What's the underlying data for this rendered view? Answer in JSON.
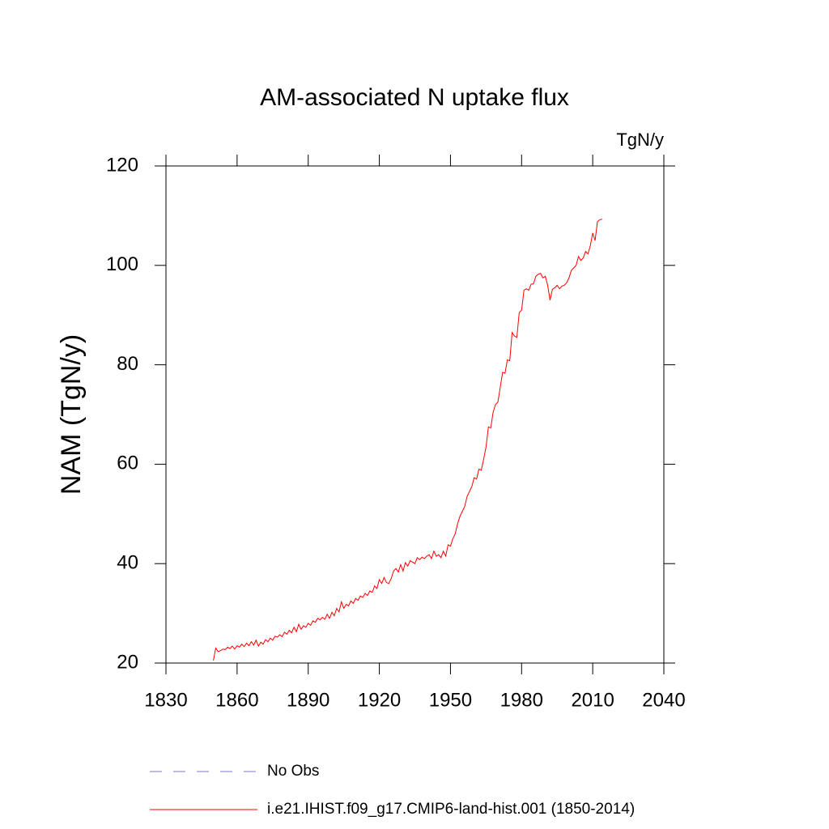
{
  "chart_data": {
    "type": "line",
    "title": "AM-associated N uptake flux",
    "units": "TgN/y",
    "ylabel": "NAM  (TgN/y)",
    "xlim": [
      1830,
      2040
    ],
    "xticks": [
      1830,
      1860,
      1890,
      1920,
      1950,
      1980,
      2010,
      2040
    ],
    "ylim": [
      20,
      120
    ],
    "yticks": [
      20,
      40,
      60,
      80,
      100,
      120
    ],
    "obs": {
      "name": "No Obs",
      "color": "#7b7bc4",
      "dashed": true
    },
    "x": [
      1850,
      1851,
      1852,
      1853,
      1854,
      1855,
      1856,
      1857,
      1858,
      1859,
      1860,
      1861,
      1862,
      1863,
      1864,
      1865,
      1866,
      1867,
      1868,
      1869,
      1870,
      1871,
      1872,
      1873,
      1874,
      1875,
      1876,
      1877,
      1878,
      1879,
      1880,
      1881,
      1882,
      1883,
      1884,
      1885,
      1886,
      1887,
      1888,
      1889,
      1890,
      1891,
      1892,
      1893,
      1894,
      1895,
      1896,
      1897,
      1898,
      1899,
      1900,
      1901,
      1902,
      1903,
      1904,
      1905,
      1906,
      1907,
      1908,
      1909,
      1910,
      1911,
      1912,
      1913,
      1914,
      1915,
      1916,
      1917,
      1918,
      1919,
      1920,
      1921,
      1922,
      1923,
      1924,
      1925,
      1926,
      1927,
      1928,
      1929,
      1930,
      1931,
      1932,
      1933,
      1934,
      1935,
      1936,
      1937,
      1938,
      1939,
      1940,
      1941,
      1942,
      1943,
      1944,
      1945,
      1946,
      1947,
      1948,
      1949,
      1950,
      1951,
      1952,
      1953,
      1954,
      1955,
      1956,
      1957,
      1958,
      1959,
      1960,
      1961,
      1962,
      1963,
      1964,
      1965,
      1966,
      1967,
      1968,
      1969,
      1970,
      1971,
      1972,
      1973,
      1974,
      1975,
      1976,
      1977,
      1978,
      1979,
      1980,
      1981,
      1982,
      1983,
      1984,
      1985,
      1986,
      1987,
      1988,
      1989,
      1990,
      1991,
      1992,
      1993,
      1994,
      1995,
      1996,
      1997,
      1998,
      1999,
      2000,
      2001,
      2002,
      2003,
      2004,
      2005,
      2006,
      2007,
      2008,
      2009,
      2010,
      2011,
      2012,
      2013,
      2014
    ],
    "series": [
      {
        "name": "i.e21.IHIST.f09_g17.CMIP6-land-hist.001 (1850-2014)",
        "color": "#ff0000",
        "values": [
          20.5,
          23.0,
          22.3,
          22.5,
          22.8,
          22.7,
          23.2,
          22.9,
          23.4,
          22.8,
          23.5,
          23.2,
          23.8,
          23.3,
          24.0,
          23.5,
          24.3,
          23.6,
          24.6,
          23.4,
          24.2,
          23.8,
          24.7,
          24.3,
          25.0,
          24.6,
          25.4,
          25.2,
          25.7,
          25.3,
          26.2,
          25.8,
          26.6,
          26.1,
          27.2,
          26.3,
          27.8,
          26.8,
          27.5,
          27.2,
          28.0,
          27.6,
          28.5,
          28.2,
          29.0,
          28.7,
          29.2,
          28.8,
          29.8,
          29.0,
          30.2,
          29.5,
          31.0,
          30.3,
          32.3,
          31.0,
          31.8,
          31.5,
          32.5,
          32.0,
          33.0,
          32.6,
          33.5,
          33.2,
          34.0,
          33.6,
          34.5,
          34.2,
          35.5,
          35.0,
          36.8,
          36.0,
          37.2,
          36.2,
          36.0,
          37.0,
          38.5,
          39.0,
          38.3,
          39.8,
          38.5,
          40.2,
          39.5,
          40.6,
          40.3,
          40.0,
          41.2,
          40.8,
          41.3,
          41.0,
          41.5,
          41.8,
          41.0,
          42.5,
          41.5,
          41.8,
          41.2,
          42.5,
          41.5,
          43.8,
          43.5,
          45.0,
          46.0,
          48.0,
          49.5,
          50.5,
          51.5,
          53.5,
          54.5,
          55.5,
          57.3,
          57.0,
          59.0,
          58.8,
          61.0,
          63.5,
          67.5,
          67.3,
          70.5,
          72.0,
          72.5,
          75.5,
          78.5,
          78.3,
          81.0,
          80.8,
          86.5,
          85.8,
          85.5,
          90.5,
          91.0,
          95.0,
          95.3,
          95.0,
          96.2,
          96.3,
          97.8,
          98.2,
          98.4,
          97.5,
          97.8,
          96.0,
          93.0,
          95.2,
          95.5,
          96.0,
          95.3,
          95.8,
          96.0,
          96.5,
          97.5,
          99.0,
          99.5,
          100.0,
          101.8,
          101.0,
          101.5,
          102.8,
          102.3,
          104.0,
          106.5,
          105.0,
          108.8,
          109.2,
          109.3
        ]
      }
    ]
  }
}
